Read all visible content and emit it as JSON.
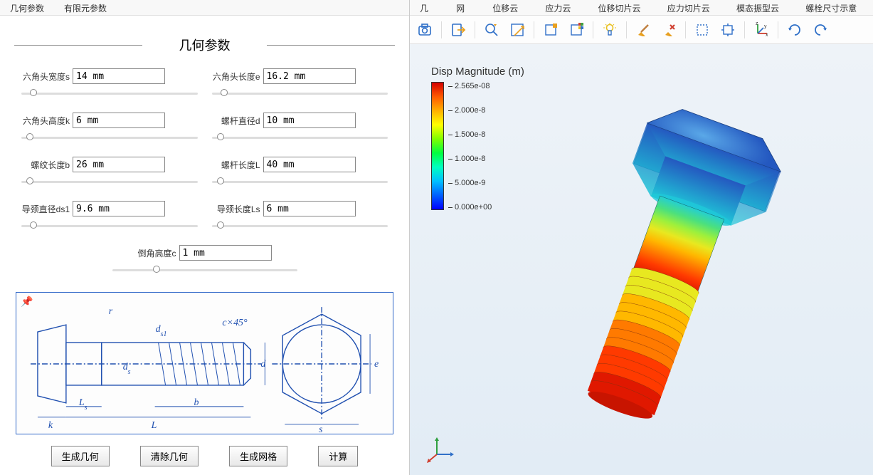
{
  "left_tabs": [
    "几何参数",
    "有限元参数"
  ],
  "right_tabs": [
    "几何",
    "网格",
    "位移云图",
    "应力云图",
    "位移切片云图",
    "应力切片云图",
    "模态振型云图",
    "螺栓尺寸示意图"
  ],
  "section_title": "几何参数",
  "params": {
    "hex_width_s": {
      "label": "六角头宽度s",
      "value": "14 mm",
      "thumb": 5
    },
    "hex_len_e": {
      "label": "六角头长度e",
      "value": "16.2 mm",
      "thumb": 5
    },
    "hex_height_k": {
      "label": "六角头高度k",
      "value": "6 mm",
      "thumb": 3
    },
    "shaft_d": {
      "label": "螺杆直径d",
      "value": "10 mm",
      "thumb": 3
    },
    "thread_b": {
      "label": "螺纹长度b",
      "value": "26 mm",
      "thumb": 3
    },
    "shaft_L": {
      "label": "螺杆长度L",
      "value": "40 mm",
      "thumb": 3
    },
    "neck_ds1": {
      "label": "导颈直径ds1",
      "value": "9.6 mm",
      "thumb": 5
    },
    "neck_Ls": {
      "label": "导颈长度Ls",
      "value": "6 mm",
      "thumb": 3
    },
    "chamfer_c": {
      "label": "倒角高度c",
      "value": "1 mm",
      "thumb": 22
    }
  },
  "diagram_labels": {
    "r": "r",
    "ds1": "d",
    "s1": "s1",
    "c45": "c×45°",
    "ds": "d",
    "s": "s",
    "d": "d",
    "e": "e",
    "Ls": "L",
    "b": "b",
    "k": "k",
    "L": "L",
    "ss": "s"
  },
  "buttons": {
    "gen_geom": "生成几何",
    "clear_geom": "清除几何",
    "gen_mesh": "生成网格",
    "compute": "计算"
  },
  "legend": {
    "title": "Disp Magnitude (m)",
    "ticks": [
      "2.565e-08",
      "2.000e-8",
      "1.500e-8",
      "1.000e-8",
      "5.000e-9",
      "0.000e+00"
    ],
    "colors": [
      "#d40000",
      "#ff5a00",
      "#ffb000",
      "#ffff00",
      "#80ff00",
      "#00ff40",
      "#00ffc0",
      "#00c0ff",
      "#0060ff",
      "#0000ff"
    ]
  },
  "bolt_render": {
    "head_color_top": "#2458c0",
    "head_color_bottom": "#1fc9d8",
    "shaft_gradient": [
      "#25cfd0",
      "#4be07e",
      "#9df03c",
      "#e8e820",
      "#ffb800",
      "#ff7a00",
      "#ff3a00",
      "#e01800"
    ],
    "angle_deg": 20
  }
}
